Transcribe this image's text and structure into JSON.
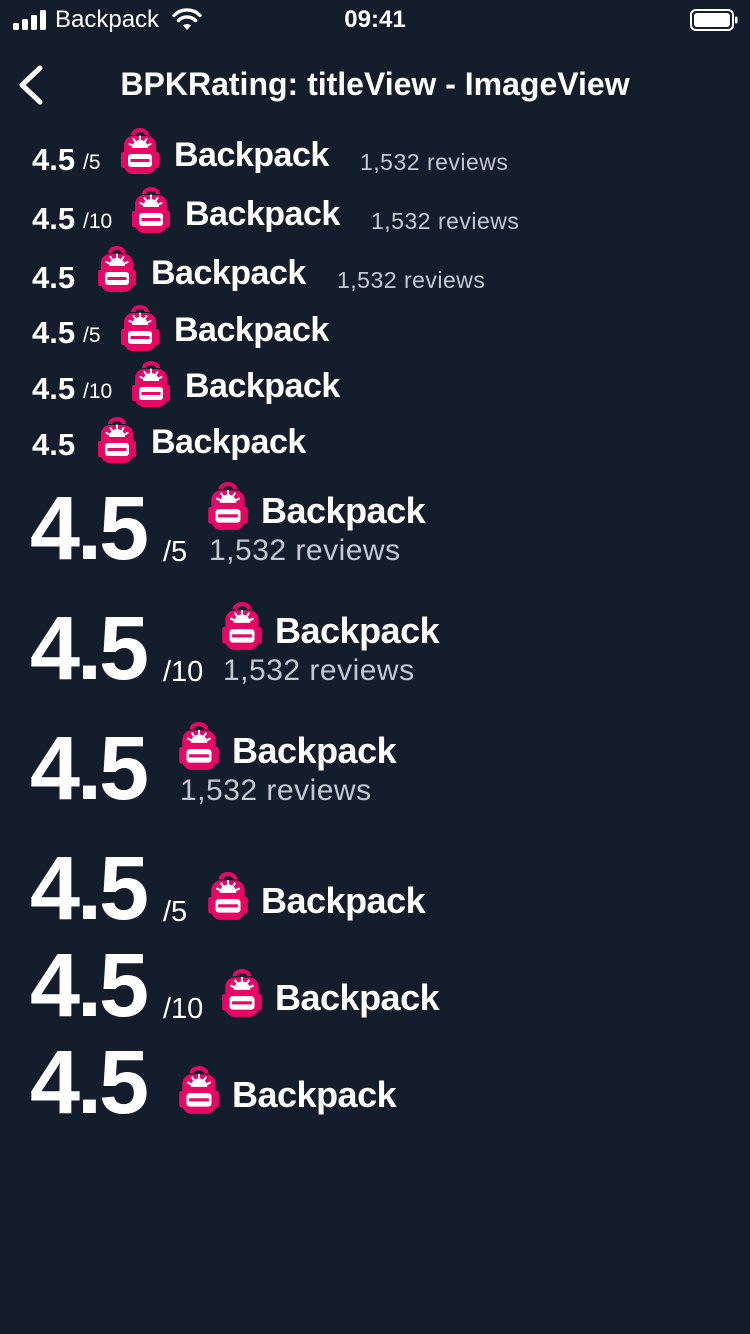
{
  "status_bar": {
    "carrier": "Backpack",
    "time": "09:41"
  },
  "nav": {
    "title": "BPKRating: titleView - ImageView"
  },
  "brand": {
    "logo_text": "Backpack",
    "icon": "backpack-icon",
    "color": "#e70866"
  },
  "ratings": [
    {
      "size": "small",
      "value": "4.5",
      "scale": "/5",
      "reviews": "1,532 reviews"
    },
    {
      "size": "small",
      "value": "4.5",
      "scale": "/10",
      "reviews": "1,532 reviews"
    },
    {
      "size": "small",
      "value": "4.5",
      "reviews": "1,532 reviews"
    },
    {
      "size": "small",
      "value": "4.5",
      "scale": "/5"
    },
    {
      "size": "small",
      "value": "4.5",
      "scale": "/10"
    },
    {
      "size": "small",
      "value": "4.5"
    },
    {
      "size": "large",
      "value": "4.5",
      "scale": "/5",
      "reviews": "1,532 reviews"
    },
    {
      "size": "large",
      "value": "4.5",
      "scale": "/10",
      "reviews": "1,532 reviews"
    },
    {
      "size": "large",
      "value": "4.5",
      "reviews": "1,532 reviews"
    },
    {
      "size": "large",
      "value": "4.5",
      "scale": "/5"
    },
    {
      "size": "large",
      "value": "4.5",
      "scale": "/10"
    },
    {
      "size": "large",
      "value": "4.5"
    }
  ]
}
